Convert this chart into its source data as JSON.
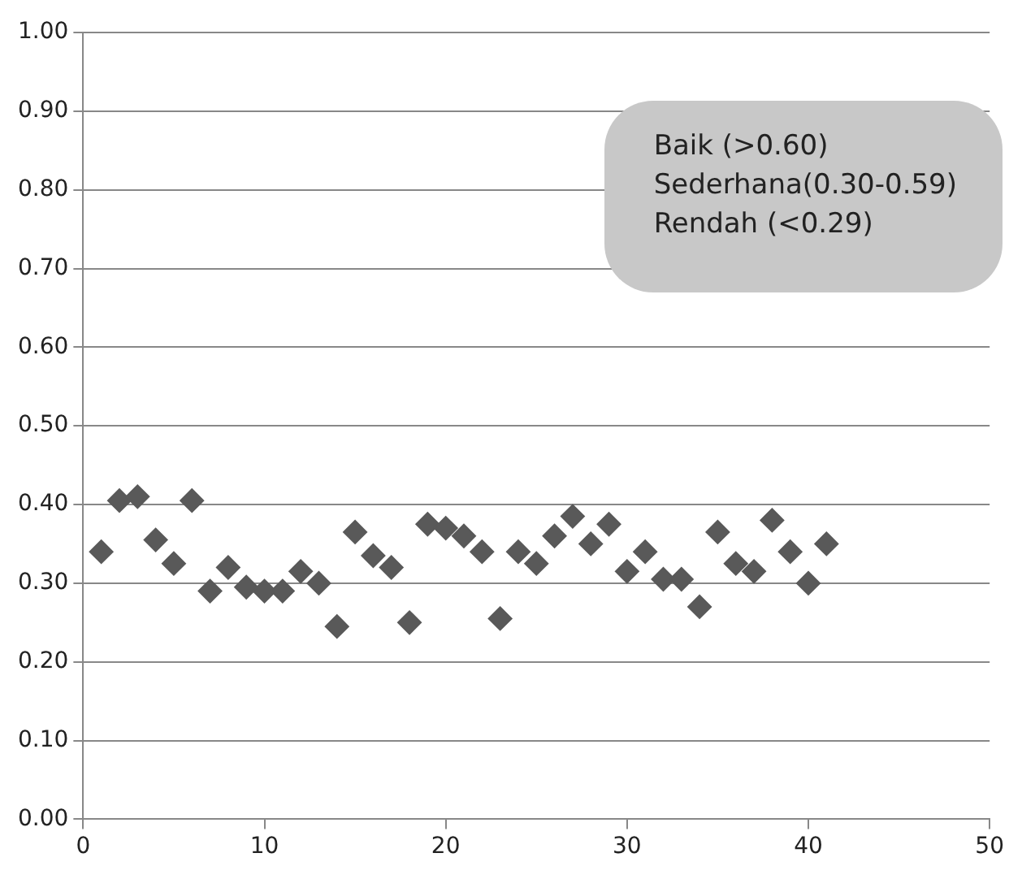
{
  "chart_data": {
    "type": "scatter",
    "x": [
      1,
      2,
      3,
      4,
      5,
      6,
      7,
      8,
      9,
      10,
      11,
      12,
      13,
      14,
      15,
      16,
      17,
      18,
      19,
      20,
      21,
      22,
      23,
      24,
      25,
      26,
      27,
      28,
      29,
      30,
      31,
      32,
      33,
      34,
      35,
      36,
      37,
      38,
      39,
      40,
      41
    ],
    "values": [
      0.34,
      0.405,
      0.41,
      0.355,
      0.325,
      0.405,
      0.29,
      0.32,
      0.295,
      0.29,
      0.29,
      0.315,
      0.3,
      0.245,
      0.365,
      0.335,
      0.32,
      0.25,
      0.375,
      0.37,
      0.36,
      0.34,
      0.255,
      0.34,
      0.325,
      0.36,
      0.385,
      0.35,
      0.375,
      0.315,
      0.34,
      0.305,
      0.305,
      0.27,
      0.365,
      0.325,
      0.315,
      0.38,
      0.34,
      0.3,
      0.35
    ],
    "color": "#595959",
    "marker": "diamond",
    "grid": "y",
    "legend": false,
    "xlim": [
      0,
      50
    ],
    "xticks": [
      0,
      10,
      20,
      30,
      40,
      50
    ],
    "ylim": [
      0,
      1
    ],
    "yticks": [
      {
        "value": 0,
        "label": "0.00"
      },
      {
        "value": 0.1,
        "label": "0.10"
      },
      {
        "value": 0.2,
        "label": "0.20"
      },
      {
        "value": 0.3,
        "label": "0.30"
      },
      {
        "value": 0.4,
        "label": "0.40"
      },
      {
        "value": 0.5,
        "label": "0.50"
      },
      {
        "value": 0.6,
        "label": "0.60"
      },
      {
        "value": 0.7,
        "label": "0.70"
      },
      {
        "value": 0.8,
        "label": "0.80"
      },
      {
        "value": 0.9,
        "label": "0.90"
      },
      {
        "value": 1,
        "label": "1.00"
      }
    ],
    "annotations": [
      "Baik (>0.60)",
      "Sederhana(0.30-0.59)",
      "Rendah (<0.29)"
    ]
  }
}
